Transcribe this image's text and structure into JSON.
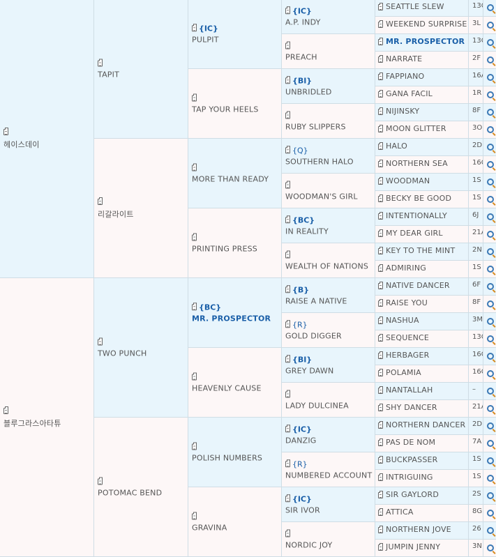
{
  "generations": [
    [
      {
        "name": "헤이스데이",
        "code": ""
      },
      {
        "name": "블루그라스아타튜",
        "code": ""
      }
    ],
    [
      {
        "name": "TAPIT",
        "code": ""
      },
      {
        "name": "리갈라이트",
        "code": ""
      },
      {
        "name": "TWO PUNCH",
        "code": ""
      },
      {
        "name": "POTOMAC BEND",
        "code": ""
      }
    ],
    [
      {
        "name": "PULPIT",
        "code": "{IC}"
      },
      {
        "name": "TAP YOUR HEELS",
        "code": ""
      },
      {
        "name": "MORE THAN READY",
        "code": ""
      },
      {
        "name": "PRINTING PRESS",
        "code": ""
      },
      {
        "name": "MR. PROSPECTOR",
        "code": "{BC}",
        "highlight": true
      },
      {
        "name": "HEAVENLY CAUSE",
        "code": ""
      },
      {
        "name": "POLISH NUMBERS",
        "code": ""
      },
      {
        "name": "GRAVINA",
        "code": ""
      }
    ],
    [
      {
        "name": "A.P. INDY",
        "code": "{IC}"
      },
      {
        "name": "PREACH",
        "code": ""
      },
      {
        "name": "UNBRIDLED",
        "code": "{BI}"
      },
      {
        "name": "RUBY SLIPPERS",
        "code": ""
      },
      {
        "name": "SOUTHERN HALO",
        "code": "{Q}",
        "light": true
      },
      {
        "name": "WOODMAN'S GIRL",
        "code": ""
      },
      {
        "name": "IN REALITY",
        "code": "{BC}"
      },
      {
        "name": "WEALTH OF NATIONS",
        "code": ""
      },
      {
        "name": "RAISE A NATIVE",
        "code": "{B}"
      },
      {
        "name": "GOLD DIGGER",
        "code": "{R}",
        "light": true
      },
      {
        "name": "GREY DAWN",
        "code": "{BI}"
      },
      {
        "name": "LADY DULCINEA",
        "code": ""
      },
      {
        "name": "DANZIG",
        "code": "{IC}"
      },
      {
        "name": "NUMBERED ACCOUNT",
        "code": "{R}",
        "light": true
      },
      {
        "name": "SIR IVOR",
        "code": "{IC}"
      },
      {
        "name": "NORDIC JOY",
        "code": ""
      }
    ],
    [
      {
        "name": "SEATTLE SLEW",
        "stat": "13C"
      },
      {
        "name": "WEEKEND SURPRISE",
        "stat": "3L"
      },
      {
        "name": "MR. PROSPECTOR",
        "stat": "13C",
        "highlight": true
      },
      {
        "name": "NARRATE",
        "stat": "2F"
      },
      {
        "name": "FAPPIANO",
        "stat": "16A"
      },
      {
        "name": "GANA FACIL",
        "stat": "1R"
      },
      {
        "name": "NIJINSKY",
        "stat": "8F"
      },
      {
        "name": "MOON GLITTER",
        "stat": "3O"
      },
      {
        "name": "HALO",
        "stat": "2D"
      },
      {
        "name": "NORTHERN SEA",
        "stat": "16C"
      },
      {
        "name": "WOODMAN",
        "stat": "1S"
      },
      {
        "name": "BECKY BE GOOD",
        "stat": "1S"
      },
      {
        "name": "INTENTIONALLY",
        "stat": "6J"
      },
      {
        "name": "MY DEAR GIRL",
        "stat": "21A"
      },
      {
        "name": "KEY TO THE MINT",
        "stat": "2N"
      },
      {
        "name": "ADMIRING",
        "stat": "1S"
      },
      {
        "name": "NATIVE DANCER",
        "stat": "6F"
      },
      {
        "name": "RAISE YOU",
        "stat": "8F"
      },
      {
        "name": "NASHUA",
        "stat": "3M"
      },
      {
        "name": "SEQUENCE",
        "stat": "13C"
      },
      {
        "name": "HERBAGER",
        "stat": "16C"
      },
      {
        "name": "POLAMIA",
        "stat": "16C"
      },
      {
        "name": "NANTALLAH",
        "stat": "–"
      },
      {
        "name": "SHY DANCER",
        "stat": "21A"
      },
      {
        "name": "NORTHERN DANCER",
        "stat": "2D"
      },
      {
        "name": "PAS DE NOM",
        "stat": "7A"
      },
      {
        "name": "BUCKPASSER",
        "stat": "1S"
      },
      {
        "name": "INTRIGUING",
        "stat": "1S"
      },
      {
        "name": "SIR GAYLORD",
        "stat": "2S"
      },
      {
        "name": "ATTICA",
        "stat": "8G"
      },
      {
        "name": "NORTHERN JOVE",
        "stat": "26"
      },
      {
        "name": "JUMPIN JENNY",
        "stat": "3N"
      }
    ]
  ],
  "icons": {
    "note": "clipboard-icon",
    "search": "magnifier-icon"
  },
  "colors": {
    "sire_bg": "#e8f5fc",
    "dam_bg": "#fdf7f7",
    "link": "#1a5fa8"
  }
}
